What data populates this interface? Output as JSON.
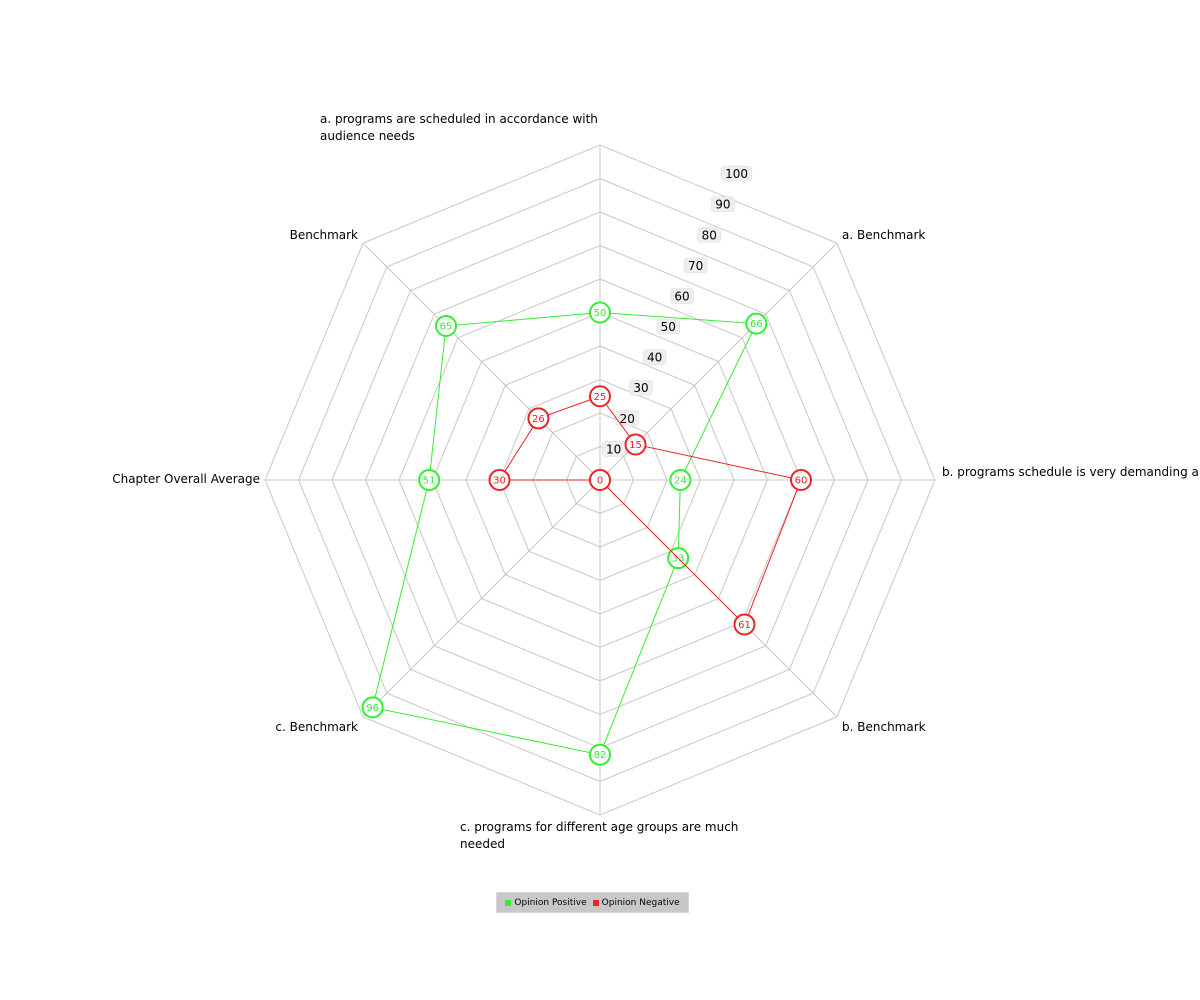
{
  "chart_data": {
    "type": "radar",
    "axes": [
      "a. programs are scheduled in accordance with audience needs",
      "a. Benchmark",
      "b. programs schedule is very demanding a",
      "b. Benchmark",
      "c. programs for different age groups are much needed",
      "c. Benchmark",
      "Chapter Overall Average",
      "Benchmark"
    ],
    "range": [
      0,
      100
    ],
    "ticks": [
      "10",
      "20",
      "30",
      "40",
      "50",
      "60",
      "70",
      "80",
      "90",
      "100"
    ],
    "series": [
      {
        "name": "Opinion Positive",
        "color": "#33ee33",
        "values": [
          50,
          66,
          24,
          33,
          82,
          96,
          51,
          65
        ],
        "labels": [
          "50",
          "66",
          "24",
          "33",
          "82",
          "96",
          "51",
          "65"
        ]
      },
      {
        "name": "Opinion Negative",
        "color": "#ee2222",
        "values": [
          25,
          15,
          60,
          61,
          0,
          30,
          26
        ],
        "labels": [
          "25",
          "15",
          "60",
          "61",
          "0",
          "30",
          "26"
        ],
        "axis_index": [
          0,
          1,
          2,
          3,
          4,
          6,
          7
        ]
      }
    ],
    "legend": {
      "position": "bottom",
      "items": [
        "Opinion Positive",
        "Opinion Negative"
      ]
    }
  }
}
